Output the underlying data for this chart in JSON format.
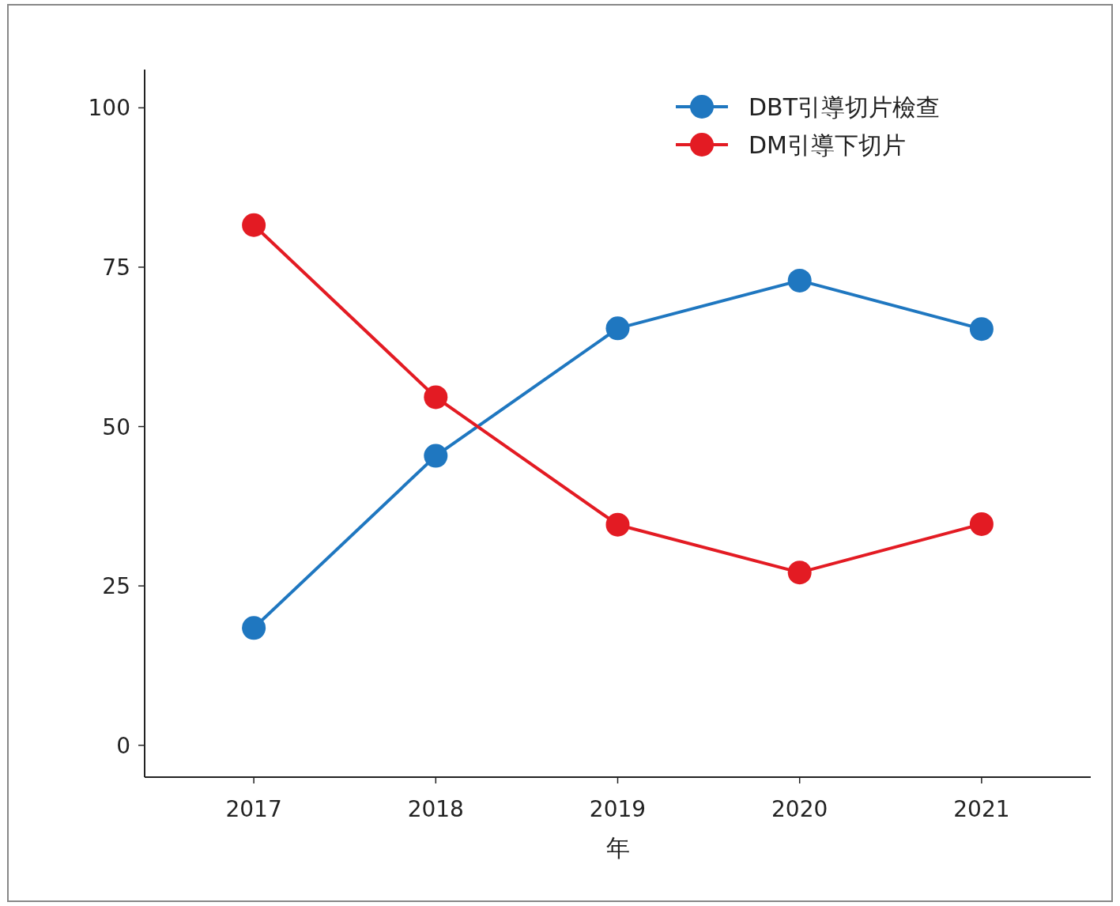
{
  "chart_data": {
    "type": "line",
    "xlabel": "年",
    "x": [
      2017,
      2018,
      2019,
      2020,
      2021
    ],
    "series": [
      {
        "name": "DBT引導切片檢查",
        "color": "#1f77c0",
        "values": [
          18.4,
          45.4,
          65.4,
          72.9,
          65.3
        ]
      },
      {
        "name": "DM引導下切片",
        "color": "#e31b23",
        "values": [
          81.6,
          54.6,
          34.6,
          27.1,
          34.7
        ]
      }
    ],
    "xlim": [
      2016.4,
      2021.6
    ],
    "xticks": [
      2017,
      2018,
      2019,
      2020,
      2021
    ],
    "ylim": [
      -5,
      106
    ],
    "yticks": [
      0,
      25,
      50,
      75,
      100
    ],
    "grid": false,
    "legend": "top right",
    "marker": "circle",
    "line_style": "solid"
  }
}
